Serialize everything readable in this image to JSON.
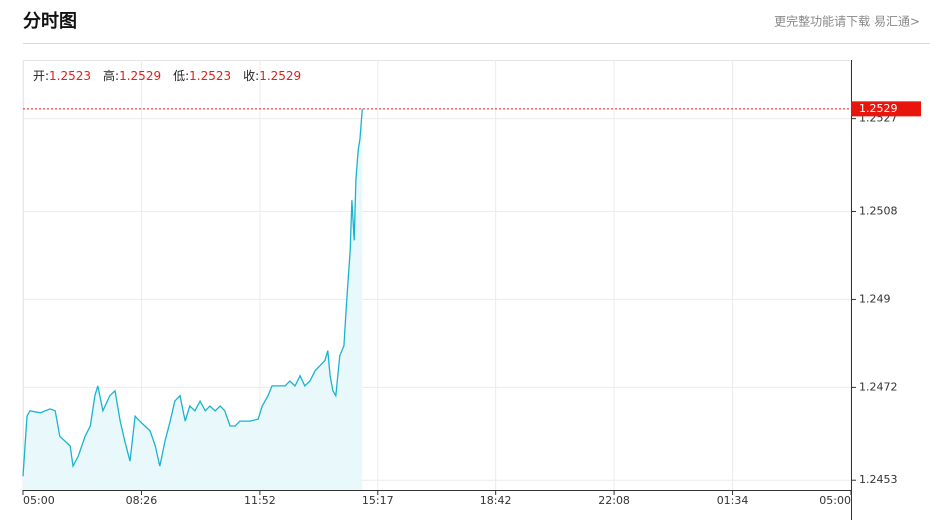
{
  "header": {
    "title": "分时图",
    "link": "更完整功能请下载 易汇通>"
  },
  "chart_data": {
    "type": "line",
    "quote": [
      {
        "label": "开:",
        "value": 1.2523
      },
      {
        "label": "高:",
        "value": 1.2529
      },
      {
        "label": "低:",
        "value": 1.2523
      },
      {
        "label": "收:",
        "value": 1.2529
      }
    ],
    "last_price": 1.2529,
    "xlim": [
      0,
      1440
    ],
    "xticks": [
      {
        "value": 0,
        "label": "05:00"
      },
      {
        "value": 206,
        "label": "08:26"
      },
      {
        "value": 412,
        "label": "11:52"
      },
      {
        "value": 617,
        "label": "15:17"
      },
      {
        "value": 822,
        "label": "18:42"
      },
      {
        "value": 1028,
        "label": "22:08"
      },
      {
        "value": 1234,
        "label": "01:34"
      },
      {
        "value": 1440,
        "label": "05:00"
      }
    ],
    "ylim": [
      1.2451,
      1.2539
    ],
    "yticks": [
      1.2453,
      1.2472,
      1.249,
      1.2508,
      1.2527
    ],
    "grid": true,
    "x": [
      0,
      7,
      12,
      30,
      47,
      56,
      64,
      73,
      82,
      87,
      96,
      108,
      117,
      125,
      130,
      139,
      151,
      160,
      169,
      177,
      186,
      195,
      203,
      212,
      221,
      230,
      238,
      247,
      256,
      264,
      273,
      282,
      290,
      299,
      308,
      317,
      325,
      334,
      343,
      351,
      360,
      369,
      377,
      395,
      409,
      416,
      426,
      433,
      443,
      456,
      464,
      473,
      482,
      490,
      499,
      508,
      516,
      525,
      530,
      534,
      539,
      544,
      551,
      558,
      563,
      569,
      572,
      576,
      579,
      583,
      586,
      590
    ],
    "series": [
      {
        "name": "price",
        "color": "#1ab3cf",
        "values": [
          1.24538,
          1.24661,
          1.24672,
          1.24668,
          1.24676,
          1.24672,
          1.2462,
          1.2461,
          1.246,
          1.24559,
          1.24579,
          1.2462,
          1.24641,
          1.24703,
          1.24723,
          1.24672,
          1.24703,
          1.24713,
          1.24651,
          1.2461,
          1.24569,
          1.24661,
          1.24651,
          1.24641,
          1.24631,
          1.246,
          1.24559,
          1.2461,
          1.24651,
          1.24692,
          1.24703,
          1.24651,
          1.24682,
          1.24672,
          1.24692,
          1.24672,
          1.24682,
          1.24672,
          1.24682,
          1.24672,
          1.24641,
          1.24641,
          1.24651,
          1.24651,
          1.24655,
          1.24682,
          1.24703,
          1.24723,
          1.24723,
          1.24723,
          1.24733,
          1.24723,
          1.24744,
          1.24723,
          1.24733,
          1.24754,
          1.24764,
          1.24775,
          1.24795,
          1.24744,
          1.24713,
          1.24703,
          1.24785,
          1.24805,
          1.24898,
          1.25001,
          1.25103,
          1.25021,
          1.25145,
          1.25206,
          1.25227,
          1.2529
        ]
      }
    ]
  }
}
